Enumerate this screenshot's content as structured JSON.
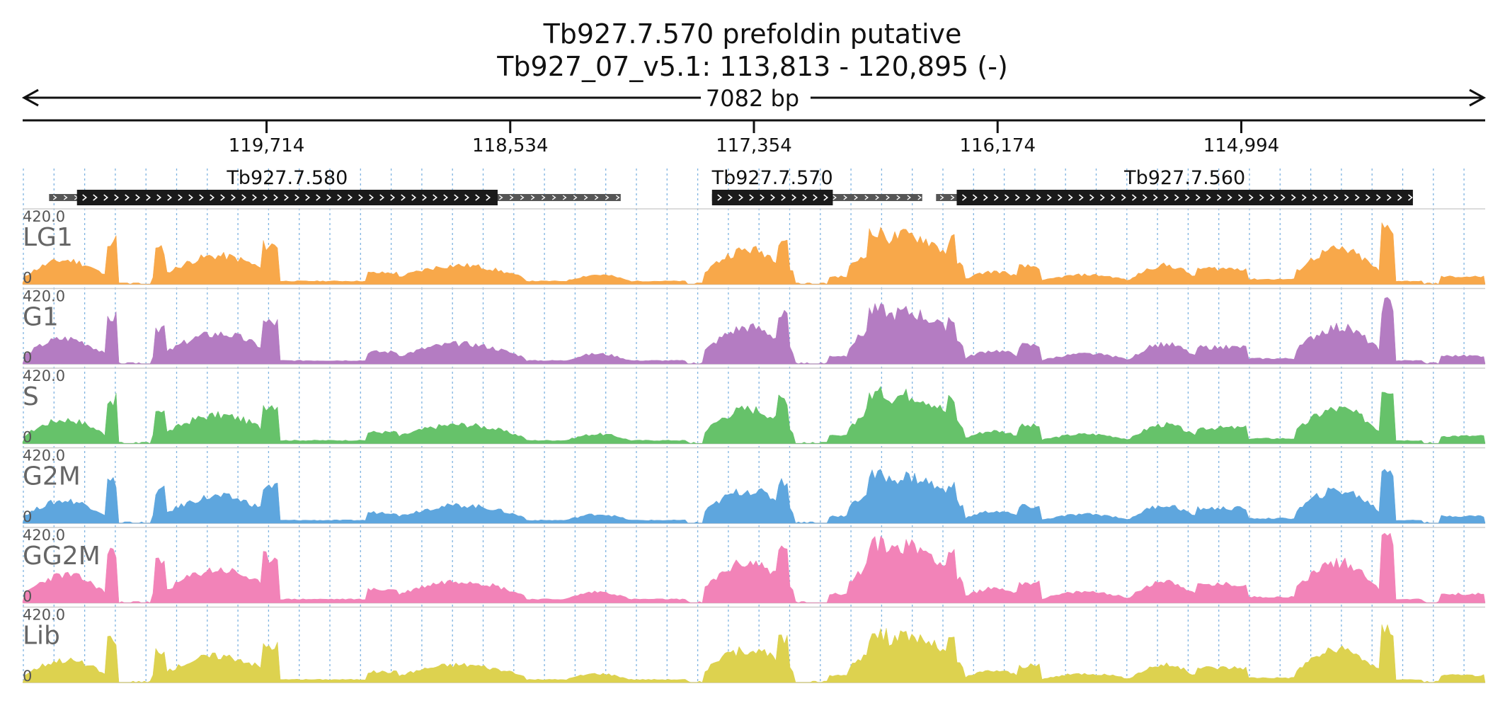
{
  "chart_data": {
    "type": "area",
    "title": "Tb927.7.570  prefoldin  putative",
    "subtitle": "Tb927_07_v5.1: 113,813 - 120,895 (-)",
    "span_label": "7082 bp",
    "region": {
      "chrom": "Tb927_07_v5.1",
      "start": 113813,
      "end": 120895,
      "strand": "-"
    },
    "x_axis": {
      "reversed": true,
      "ticks": [
        119714,
        118534,
        117354,
        116174,
        114994
      ],
      "tick_labels": [
        "119,714",
        "118,534",
        "117,354",
        "116,174",
        "114,994"
      ]
    },
    "genes": [
      {
        "name": "Tb927.7.580",
        "utr_start": 120767,
        "utr_end": 117999,
        "cds_start": 120632,
        "cds_end": 118595
      },
      {
        "name": "Tb927.7.570",
        "utr_start": 117557,
        "utr_end": 116539,
        "cds_start": 117557,
        "cds_end": 116972
      },
      {
        "name": "Tb927.7.560",
        "utr_start": 116472,
        "utr_end": 114163,
        "cds_start": 116372,
        "cds_end": 114163
      }
    ],
    "tracks": [
      {
        "name": "LG1",
        "color": "#f8a84a",
        "ymax_label": "420.0",
        "ymin_label": "0"
      },
      {
        "name": "G1",
        "color": "#b47cc2",
        "ymax_label": "420.0",
        "ymin_label": "0"
      },
      {
        "name": "S",
        "color": "#66c26a",
        "ymax_label": "420.0",
        "ymin_label": "0"
      },
      {
        "name": "G2M",
        "color": "#5ea6de",
        "ymax_label": "420.0",
        "ymin_label": "0"
      },
      {
        "name": "GG2M",
        "color": "#f283b8",
        "ymax_label": "420.0",
        "ymin_label": "0"
      },
      {
        "name": "Lib",
        "color": "#ddd24f",
        "ymax_label": "420.0",
        "ymin_label": "0"
      }
    ],
    "ylim": [
      0,
      420
    ],
    "grid": true
  }
}
